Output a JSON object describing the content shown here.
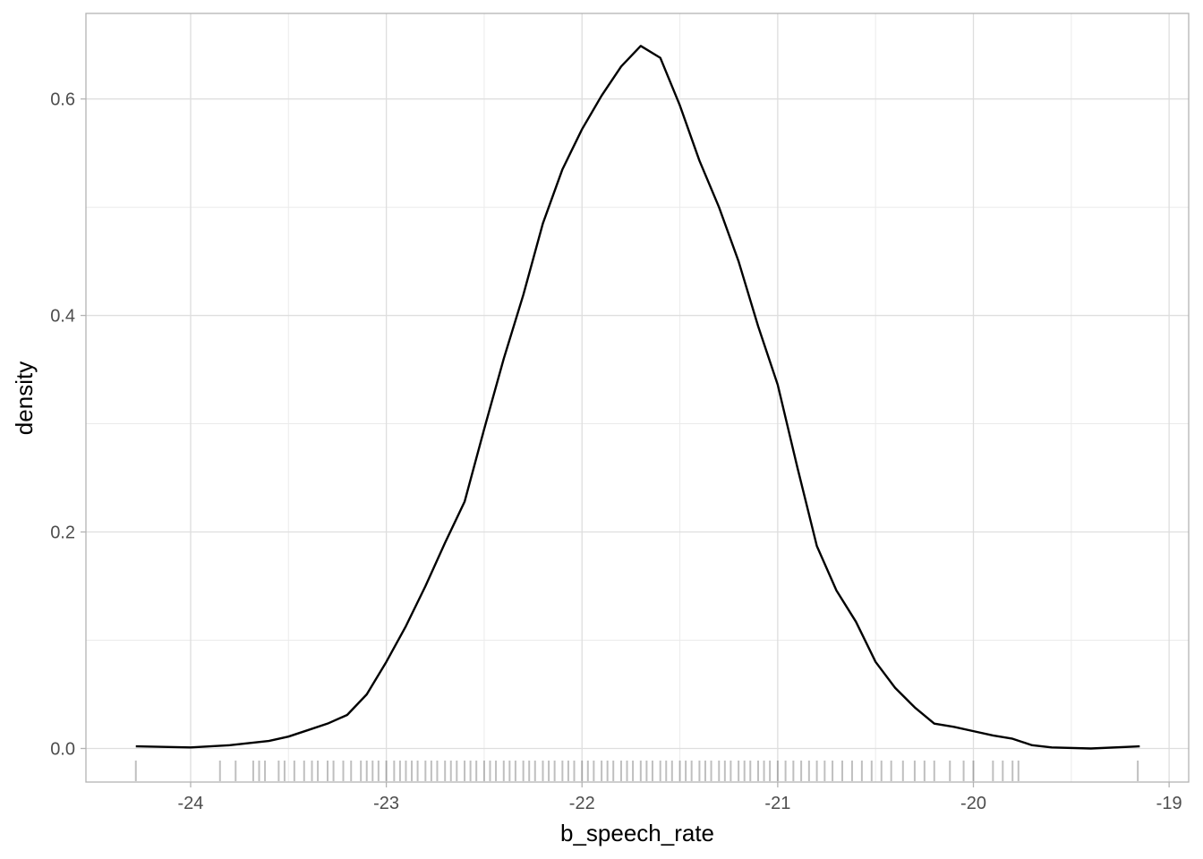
{
  "chart_data": {
    "type": "density",
    "x_label": "b_speech_rate",
    "y_label": "density",
    "x": [
      -24.28,
      -24.0,
      -23.8,
      -23.6,
      -23.5,
      -23.4,
      -23.3,
      -23.2,
      -23.1,
      -23.0,
      -22.9,
      -22.8,
      -22.7,
      -22.6,
      -22.5,
      -22.4,
      -22.3,
      -22.2,
      -22.1,
      -22.0,
      -21.9,
      -21.8,
      -21.7,
      -21.6,
      -21.5,
      -21.4,
      -21.3,
      -21.2,
      -21.1,
      -21.0,
      -20.9,
      -20.8,
      -20.7,
      -20.6,
      -20.5,
      -20.4,
      -20.3,
      -20.2,
      -20.1,
      -20.0,
      -19.9,
      -19.8,
      -19.7,
      -19.6,
      -19.4,
      -19.15
    ],
    "values": [
      0.002,
      0.001,
      0.003,
      0.007,
      0.011,
      0.017,
      0.023,
      0.031,
      0.05,
      0.08,
      0.113,
      0.15,
      0.19,
      0.228,
      0.295,
      0.36,
      0.419,
      0.485,
      0.535,
      0.572,
      0.603,
      0.63,
      0.649,
      0.638,
      0.594,
      0.543,
      0.5,
      0.45,
      0.39,
      0.336,
      0.26,
      0.187,
      0.146,
      0.117,
      0.08,
      0.056,
      0.038,
      0.023,
      0.02,
      0.016,
      0.012,
      0.009,
      0.003,
      0.001,
      0.0,
      0.002
    ],
    "color": "#000000",
    "rug": [
      -24.28,
      -23.85,
      -23.77,
      -23.68,
      -23.65,
      -23.62,
      -23.55,
      -23.52,
      -23.47,
      -23.42,
      -23.38,
      -23.35,
      -23.3,
      -23.27,
      -23.22,
      -23.18,
      -23.13,
      -23.1,
      -23.07,
      -23.04,
      -23.0,
      -22.96,
      -22.93,
      -22.9,
      -22.87,
      -22.84,
      -22.8,
      -22.77,
      -22.74,
      -22.7,
      -22.67,
      -22.64,
      -22.6,
      -22.57,
      -22.54,
      -22.5,
      -22.47,
      -22.44,
      -22.4,
      -22.37,
      -22.34,
      -22.3,
      -22.27,
      -22.24,
      -22.2,
      -22.17,
      -22.14,
      -22.1,
      -22.07,
      -22.04,
      -22.0,
      -21.97,
      -21.94,
      -21.9,
      -21.87,
      -21.84,
      -21.8,
      -21.77,
      -21.74,
      -21.7,
      -21.67,
      -21.64,
      -21.6,
      -21.57,
      -21.54,
      -21.5,
      -21.47,
      -21.44,
      -21.4,
      -21.37,
      -21.34,
      -21.3,
      -21.27,
      -21.24,
      -21.2,
      -21.17,
      -21.14,
      -21.1,
      -21.07,
      -21.04,
      -21.0,
      -20.96,
      -20.92,
      -20.88,
      -20.84,
      -20.8,
      -20.76,
      -20.72,
      -20.67,
      -20.62,
      -20.57,
      -20.52,
      -20.47,
      -20.42,
      -20.36,
      -20.3,
      -20.25,
      -20.2,
      -20.12,
      -20.05,
      -20.0,
      -19.9,
      -19.85,
      -19.8,
      -19.77,
      -19.16
    ],
    "rug_color": "rgba(0,0,0,0.25)",
    "xlim": [
      -24.535,
      -18.9
    ],
    "xticks": [
      -24,
      -23,
      -22,
      -21,
      -20,
      -19
    ],
    "ylim": [
      -0.031,
      0.679
    ],
    "yticks": [
      {
        "value": 0,
        "label": "0.0"
      },
      0.2,
      0.4,
      0.6
    ],
    "grid": true
  }
}
